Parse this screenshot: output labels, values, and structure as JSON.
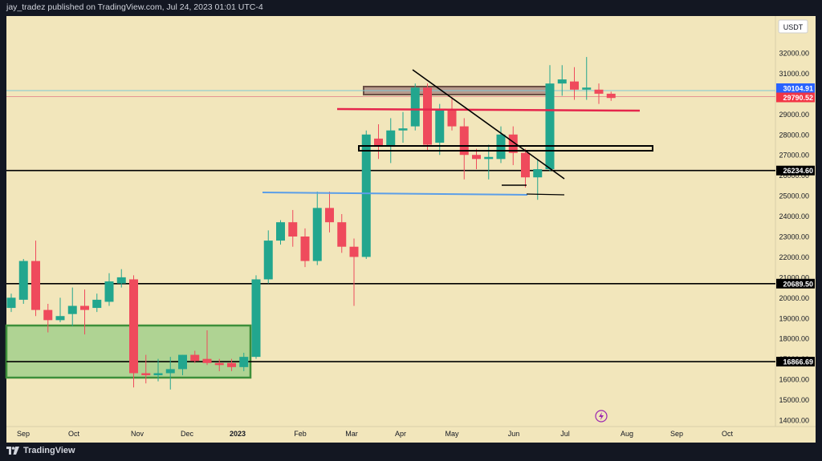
{
  "header": {
    "attribution": "jay_tradez published on TradingView.com, Jul 24, 2023 01:01 UTC-4"
  },
  "footer": {
    "brand": "TradingView"
  },
  "colors": {
    "background": "#f2e6bb",
    "up": "#22a68e",
    "down": "#ef4a5c",
    "frame": "#131722"
  },
  "chart_data": {
    "type": "candlestick",
    "title": "",
    "currency_label": "USDT",
    "ylim": [
      13800,
      33000
    ],
    "y_ticks": [
      14000,
      15000,
      16000,
      17000,
      18000,
      19000,
      20000,
      21000,
      22000,
      23000,
      24000,
      25000,
      26000,
      27000,
      28000,
      29000,
      30000,
      31000,
      32000
    ],
    "y_tick_labels": [
      "14000.00",
      "15000.00",
      "16000.00",
      "17000.00",
      "18000.00",
      "19000.00",
      "20000.00",
      "21000.00",
      "22000.00",
      "23000.00",
      "24000.00",
      "25000.00",
      "26000.00",
      "27000.00",
      "28000.00",
      "29000.00",
      "30000.00",
      "31000.00",
      "32000.00"
    ],
    "x_labels": [
      "Sep",
      "Oct",
      "Nov",
      "Dec",
      "2023",
      "Feb",
      "Mar",
      "Apr",
      "May",
      "Jun",
      "Jul",
      "Aug",
      "Sep",
      "Oct"
    ],
    "price_labels": [
      {
        "text": "30104.91",
        "value": 30104.91,
        "color": "#2962ff"
      },
      {
        "text": "29790.52",
        "value": 29790.52,
        "color": "#f23645"
      },
      {
        "text": "26234.60",
        "value": 26234.6,
        "color": "#000000"
      },
      {
        "text": "20689.50",
        "value": 20689.5,
        "color": "#000000"
      },
      {
        "text": "16866.69",
        "value": 16866.69,
        "color": "#000000"
      }
    ],
    "horizontal_levels": [
      26234.6,
      20689.5,
      16866.69
    ],
    "candles": [
      {
        "o": 19500,
        "h": 20200,
        "l": 19300,
        "c": 20000
      },
      {
        "o": 19900,
        "h": 21900,
        "l": 19700,
        "c": 21800
      },
      {
        "o": 21800,
        "h": 22800,
        "l": 19100,
        "c": 19400
      },
      {
        "o": 19400,
        "h": 19700,
        "l": 18300,
        "c": 18900
      },
      {
        "o": 18900,
        "h": 20000,
        "l": 18800,
        "c": 19100
      },
      {
        "o": 19200,
        "h": 20500,
        "l": 18600,
        "c": 19600
      },
      {
        "o": 19600,
        "h": 20400,
        "l": 18200,
        "c": 19400
      },
      {
        "o": 19500,
        "h": 20200,
        "l": 19300,
        "c": 19900
      },
      {
        "o": 19800,
        "h": 21200,
        "l": 19600,
        "c": 20800
      },
      {
        "o": 20700,
        "h": 21400,
        "l": 20500,
        "c": 21000
      },
      {
        "o": 20900,
        "h": 21100,
        "l": 15600,
        "c": 16300
      },
      {
        "o": 16300,
        "h": 17200,
        "l": 15800,
        "c": 16200
      },
      {
        "o": 16200,
        "h": 17000,
        "l": 15900,
        "c": 16300
      },
      {
        "o": 16300,
        "h": 17100,
        "l": 15500,
        "c": 16500
      },
      {
        "o": 16500,
        "h": 17200,
        "l": 16200,
        "c": 17200
      },
      {
        "o": 17200,
        "h": 17400,
        "l": 16800,
        "c": 16900
      },
      {
        "o": 17000,
        "h": 18400,
        "l": 16700,
        "c": 16800
      },
      {
        "o": 16800,
        "h": 17000,
        "l": 16400,
        "c": 16700
      },
      {
        "o": 16800,
        "h": 17000,
        "l": 16400,
        "c": 16600
      },
      {
        "o": 16600,
        "h": 17300,
        "l": 16400,
        "c": 17100
      },
      {
        "o": 17100,
        "h": 21100,
        "l": 17000,
        "c": 20900
      },
      {
        "o": 20900,
        "h": 23300,
        "l": 20700,
        "c": 22800
      },
      {
        "o": 22800,
        "h": 23800,
        "l": 22600,
        "c": 23700
      },
      {
        "o": 23700,
        "h": 24300,
        "l": 22500,
        "c": 23000
      },
      {
        "o": 23000,
        "h": 23400,
        "l": 21500,
        "c": 21800
      },
      {
        "o": 21800,
        "h": 25200,
        "l": 21600,
        "c": 24400
      },
      {
        "o": 24400,
        "h": 25200,
        "l": 23200,
        "c": 23700
      },
      {
        "o": 23700,
        "h": 24100,
        "l": 22200,
        "c": 22500
      },
      {
        "o": 22500,
        "h": 22900,
        "l": 19600,
        "c": 22000
      },
      {
        "o": 22000,
        "h": 28200,
        "l": 21900,
        "c": 28000
      },
      {
        "o": 27800,
        "h": 28500,
        "l": 26800,
        "c": 27400
      },
      {
        "o": 27400,
        "h": 28800,
        "l": 26600,
        "c": 28200
      },
      {
        "o": 28200,
        "h": 29100,
        "l": 27600,
        "c": 28300
      },
      {
        "o": 28400,
        "h": 30500,
        "l": 28200,
        "c": 30300
      },
      {
        "o": 30300,
        "h": 30500,
        "l": 27200,
        "c": 27500
      },
      {
        "o": 27600,
        "h": 29500,
        "l": 27000,
        "c": 29200
      },
      {
        "o": 29200,
        "h": 29800,
        "l": 28200,
        "c": 28400
      },
      {
        "o": 28400,
        "h": 28800,
        "l": 25800,
        "c": 27000
      },
      {
        "o": 27000,
        "h": 27300,
        "l": 26300,
        "c": 26800
      },
      {
        "o": 26800,
        "h": 27500,
        "l": 25800,
        "c": 26900
      },
      {
        "o": 26800,
        "h": 28400,
        "l": 26600,
        "c": 28000
      },
      {
        "o": 28000,
        "h": 28400,
        "l": 26500,
        "c": 27100
      },
      {
        "o": 27100,
        "h": 27300,
        "l": 25400,
        "c": 25900
      },
      {
        "o": 25900,
        "h": 26800,
        "l": 24800,
        "c": 26300
      },
      {
        "o": 26300,
        "h": 31400,
        "l": 26200,
        "c": 30500
      },
      {
        "o": 30500,
        "h": 31400,
        "l": 29900,
        "c": 30700
      },
      {
        "o": 30600,
        "h": 31300,
        "l": 29700,
        "c": 30200
      },
      {
        "o": 30200,
        "h": 31800,
        "l": 29700,
        "c": 30300
      },
      {
        "o": 30200,
        "h": 30500,
        "l": 29500,
        "c": 30000
      },
      {
        "o": 30000,
        "h": 30100,
        "l": 29650,
        "c": 29790
      }
    ]
  }
}
